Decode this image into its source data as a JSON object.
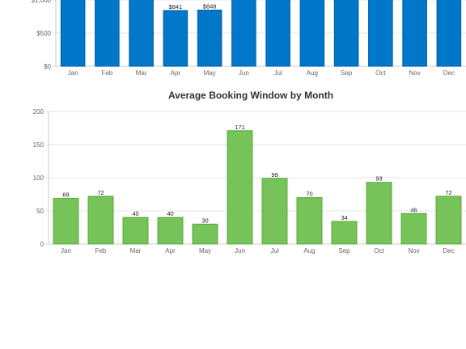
{
  "chart_data": [
    {
      "type": "bar",
      "title": "",
      "xlabel": "",
      "ylabel": "",
      "color": "#0077c8",
      "categories": [
        "Jan",
        "Feb",
        "Mar",
        "Apr",
        "May",
        "Jun",
        "Jul",
        "Aug",
        "Sep",
        "Oct",
        "Nov",
        "Dec"
      ],
      "values": [
        1100,
        1010,
        1100,
        841,
        848,
        1100,
        1100,
        1100,
        1100,
        1100,
        1100,
        1100
      ],
      "data_labels": [
        "",
        "",
        "",
        "$841",
        "$848",
        "",
        "",
        "",
        "",
        "",
        "",
        ""
      ],
      "y_ticks": [
        "$0",
        "$500",
        "$1,000"
      ],
      "ylim": [
        0,
        1000
      ],
      "grid": true,
      "note": "top of chart cropped; bars without labels extend beyond visible area"
    },
    {
      "type": "bar",
      "title": "Average Booking Window by Month",
      "xlabel": "",
      "ylabel": "",
      "color": "#76c35a",
      "categories": [
        "Jan",
        "Feb",
        "Mar",
        "Apr",
        "May",
        "Jun",
        "Jul",
        "Aug",
        "Sep",
        "Oct",
        "Nov",
        "Dec"
      ],
      "values": [
        69,
        72,
        40,
        40,
        30,
        171,
        99,
        70,
        34,
        93,
        46,
        72
      ],
      "data_labels": [
        "69",
        "72",
        "40",
        "40",
        "30",
        "171",
        "99",
        "70",
        "34",
        "93",
        "46",
        "72"
      ],
      "y_ticks": [
        "0",
        "50",
        "100",
        "150",
        "200"
      ],
      "ylim": [
        0,
        200
      ],
      "grid": true
    }
  ]
}
